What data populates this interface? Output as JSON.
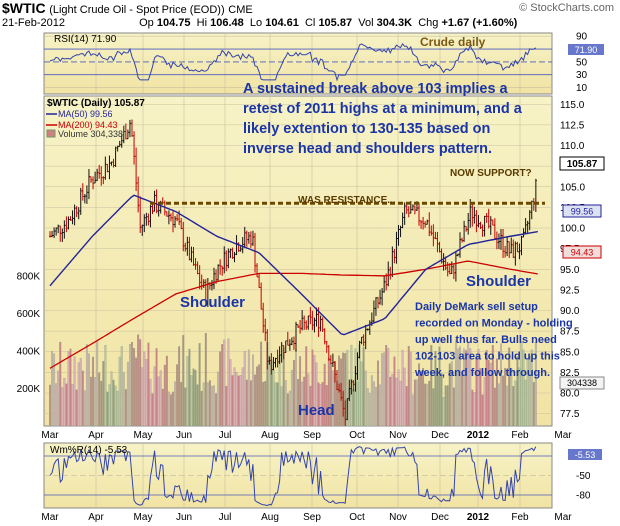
{
  "header": {
    "symbol": "$WTIC",
    "description": "(Light Crude Oil - Spot Price (EOD))",
    "exchange": "CME",
    "source": "© StockCharts.com",
    "date": "21-Feb-2012",
    "op_label": "Op",
    "op": "104.75",
    "hi_label": "Hi",
    "hi": "106.48",
    "lo_label": "Lo",
    "lo": "104.61",
    "cl_label": "Cl",
    "cl": "105.87",
    "vol_label": "Vol",
    "vol": "304.3K",
    "chg_label": "Chg",
    "chg": "+1.67 (+1.60%)"
  },
  "rsi_panel": {
    "legend": "RSI(14) 71.90",
    "title": "Crude daily",
    "ticks": [
      "90",
      "70",
      "50",
      "30",
      "10"
    ],
    "value_tag": "71.90"
  },
  "price_panel": {
    "legend_main": "$WTIC (Daily) 105.87",
    "legend_ma50": "MA(50) 99.56",
    "legend_ma200": "MA(200) 94.43",
    "legend_volume": "Volume 304,338",
    "y_ticks": [
      "115.0",
      "112.5",
      "110.0",
      "107.5",
      "105.0",
      "102.5",
      "100.0",
      "97.5",
      "95.0",
      "92.5",
      "90.0",
      "87.5",
      "85.0",
      "82.5",
      "80.0",
      "77.5"
    ],
    "vol_ticks": [
      "800K",
      "600K",
      "400K",
      "200K"
    ],
    "tags": {
      "last": "105.87",
      "ma50": "99.56",
      "ma200": "94.43",
      "volume": "304338"
    },
    "colors": {
      "price": "#8b0000",
      "ma50": "#22229a",
      "ma200": "#cc0000",
      "resistance": "#6b4a00",
      "annotation": "#1a35a8",
      "bg": "#f5efb8"
    }
  },
  "annotations": {
    "main_text": [
      "A sustained break above 103 implies a",
      "retest of 2011 highs at a minimum, and a",
      "likely extention to 130-135 based on",
      "inverse head and shoulders pattern."
    ],
    "now_support": "NOW SUPPORT?",
    "was_resistance": "WAS RESISTANCE...",
    "shoulder_left": "Shoulder",
    "shoulder_right": "Shoulder",
    "head": "Head",
    "demark_text": [
      "Daily DeMark sell setup",
      "recorded on Monday - holding",
      "up well thus far. Bulls need",
      "102-103 area to hold up this",
      "week, and follow through."
    ]
  },
  "wm_panel": {
    "legend": "Wm%R(14) -5.53",
    "ticks": [
      "-20",
      "-50",
      "-80"
    ],
    "value_tag": "-5.53"
  },
  "x_axis": {
    "labels": [
      "Mar",
      "Apr",
      "May",
      "Jun",
      "Jul",
      "Aug",
      "Sep",
      "Oct",
      "Nov",
      "Dec",
      "2012",
      "Feb",
      "Mar"
    ],
    "bold_label": "2012"
  },
  "chart_data": {
    "type": "line",
    "title": "$WTIC (Light Crude Oil - Spot Price (EOD)) - Crude daily",
    "xlabel": "",
    "ylabel": "",
    "ylim": [
      76,
      116
    ],
    "resistance_support_level": 103,
    "series": [
      {
        "name": "$WTIC (Daily)",
        "x": [
          "2011-03-01",
          "2011-03-15",
          "2011-04-01",
          "2011-04-15",
          "2011-04-29",
          "2011-05-06",
          "2011-05-16",
          "2011-06-01",
          "2011-06-15",
          "2011-06-23",
          "2011-07-01",
          "2011-07-15",
          "2011-07-27",
          "2011-08-08",
          "2011-08-15",
          "2011-09-01",
          "2011-09-15",
          "2011-10-03",
          "2011-10-14",
          "2011-11-01",
          "2011-11-16",
          "2011-12-01",
          "2011-12-19",
          "2012-01-03",
          "2012-01-17",
          "2012-02-01",
          "2012-02-10",
          "2012-02-21"
        ],
        "values": [
          99,
          101,
          106,
          108,
          113,
          100,
          103,
          101,
          95,
          92,
          95,
          98,
          99,
          83,
          85,
          88,
          89,
          77,
          86,
          93,
          102,
          101,
          94,
          102,
          100,
          97,
          98,
          105.87
        ]
      },
      {
        "name": "MA(50)",
        "x": [
          "2011-03-01",
          "2011-04-01",
          "2011-05-01",
          "2011-06-01",
          "2011-07-01",
          "2011-08-01",
          "2011-09-01",
          "2011-10-01",
          "2011-11-01",
          "2011-12-01",
          "2012-01-01",
          "2012-02-01",
          "2012-02-21"
        ],
        "values": [
          93,
          99,
          104,
          102,
          99,
          97,
          92,
          87,
          89,
          95,
          98,
          99,
          99.56
        ]
      },
      {
        "name": "MA(200)",
        "x": [
          "2011-03-01",
          "2011-04-01",
          "2011-05-01",
          "2011-06-01",
          "2011-07-01",
          "2011-08-01",
          "2011-09-01",
          "2011-10-01",
          "2011-11-01",
          "2011-12-01",
          "2012-01-01",
          "2012-02-01",
          "2012-02-21"
        ],
        "values": [
          83,
          86,
          89,
          92,
          93.5,
          94.5,
          94.5,
          94.3,
          94.2,
          95.0,
          96.0,
          95.0,
          94.43
        ]
      }
    ]
  }
}
